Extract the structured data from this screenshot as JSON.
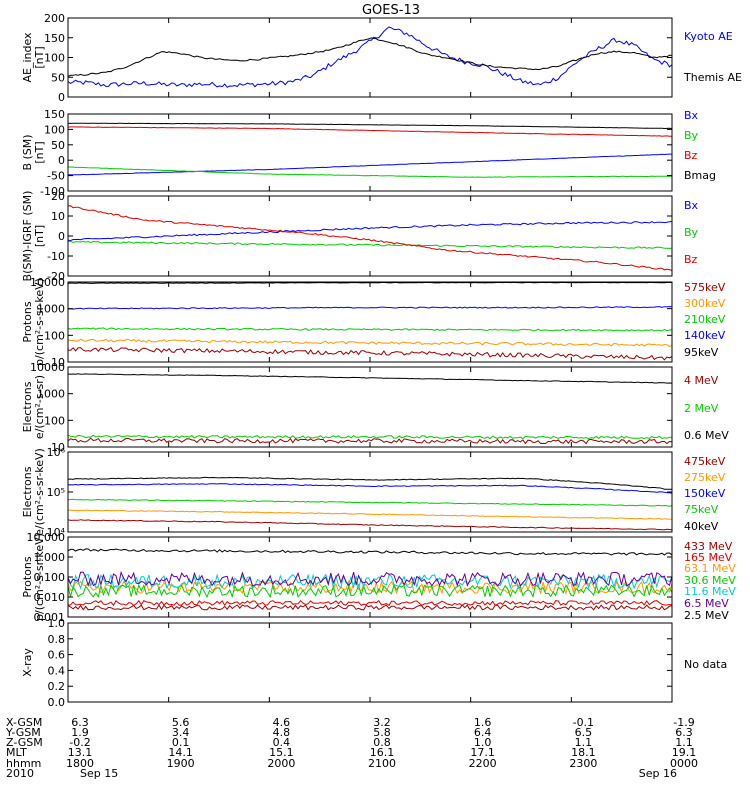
{
  "title": "GOES-13",
  "colors": {
    "black": "#000000",
    "blue": "#0000ff",
    "green": "#00cc00",
    "red": "#dd0000",
    "darkred": "#990000",
    "orange": "#ff9900",
    "cyan": "#00cccc",
    "purple": "#660099"
  },
  "chart_data": [
    {
      "type": "line",
      "panel": "ae",
      "ylabel": [
        "AE_index",
        "[nT]"
      ],
      "ylim": [
        0,
        200
      ],
      "yticks": [
        "0",
        "50",
        "100",
        "150",
        "200"
      ],
      "yscale": "linear",
      "series": [
        {
          "name": "Kyoto AE",
          "color": "blue",
          "noise": 6,
          "values": [
            37,
            36,
            30,
            33,
            35,
            32,
            30,
            33,
            31,
            30,
            32,
            34,
            40,
            55,
            85,
            110,
            140,
            175,
            160,
            130,
            105,
            90,
            80,
            60,
            40,
            30,
            50,
            90,
            120,
            145,
            130,
            95,
            80
          ]
        },
        {
          "name": "Themis AE",
          "color": "black",
          "noise": 2,
          "values": [
            53,
            57,
            62,
            75,
            95,
            115,
            110,
            100,
            95,
            92,
            95,
            100,
            105,
            112,
            120,
            135,
            150,
            140,
            125,
            108,
            100,
            90,
            80,
            75,
            72,
            70,
            78,
            95,
            110,
            115,
            112,
            100,
            105
          ]
        }
      ]
    },
    {
      "type": "line",
      "panel": "bsm",
      "ylabel": [
        "B (SM)",
        "[nT]"
      ],
      "ylim": [
        -100,
        150
      ],
      "yticks": [
        "-100",
        "-50",
        "0",
        "50",
        "100",
        "150"
      ],
      "yscale": "linear",
      "series": [
        {
          "name": "Bx",
          "color": "blue",
          "noise": 0.6,
          "values": [
            -48,
            -30,
            -5,
            20
          ]
        },
        {
          "name": "By",
          "color": "green",
          "noise": 0.6,
          "values": [
            -22,
            -45,
            -55,
            -52
          ]
        },
        {
          "name": "Bz",
          "color": "red",
          "noise": 0.6,
          "values": [
            108,
            103,
            90,
            78
          ]
        },
        {
          "name": "Bmag",
          "color": "black",
          "noise": 0.4,
          "values": [
            120,
            118,
            112,
            103
          ]
        }
      ]
    },
    {
      "type": "line",
      "panel": "bigrf",
      "ylabel": [
        "B(SM)-IGRF (SM)",
        "[nT]"
      ],
      "ylim": [
        -20,
        20
      ],
      "yticks": [
        "-20",
        "-10",
        "0",
        "10",
        "20"
      ],
      "yscale": "linear",
      "series": [
        {
          "name": "Bx",
          "color": "blue",
          "noise": 0.4,
          "values": [
            -2,
            0,
            2,
            4,
            5.5,
            6.5,
            7
          ]
        },
        {
          "name": "By",
          "color": "green",
          "noise": 0.4,
          "values": [
            -3,
            -3.5,
            -4,
            -4.5,
            -5,
            -5.5,
            -6
          ]
        },
        {
          "name": "Bz",
          "color": "red",
          "noise": 0.4,
          "values": [
            15,
            8,
            5,
            2,
            -2,
            -7,
            -10,
            -13,
            -17
          ]
        }
      ]
    },
    {
      "type": "line",
      "panel": "protons_low",
      "ylabel": [
        "Protons",
        "p/(cm²-s-sr-keV)"
      ],
      "ylim": [
        10,
        10000
      ],
      "yticks": [
        "10",
        "100",
        "1000",
        "10000"
      ],
      "yscale": "log",
      "series": [
        {
          "name": "575keV",
          "color": "darkred",
          "noise": 0.08,
          "values": [
            30,
            26,
            22,
            18,
            14
          ]
        },
        {
          "name": "300keV",
          "color": "orange",
          "noise": 0.05,
          "values": [
            65,
            58,
            52,
            48,
            42
          ]
        },
        {
          "name": "210keV",
          "color": "green",
          "noise": 0.03,
          "values": [
            180,
            170,
            165,
            160,
            155
          ]
        },
        {
          "name": "140keV",
          "color": "blue",
          "noise": 0.02,
          "values": [
            1000,
            1050,
            1100,
            1100,
            1150
          ]
        },
        {
          "name": "95keV",
          "color": "black",
          "noise": 0.01,
          "values": [
            9000,
            9200,
            9400,
            9500,
            9600
          ]
        }
      ]
    },
    {
      "type": "line",
      "panel": "electrons_mev",
      "ylabel": [
        "Electrons",
        "e/(cm²-s-sr)"
      ],
      "ylim": [
        10,
        10000
      ],
      "yticks": [
        "10",
        "100",
        "1000",
        "10000"
      ],
      "yscale": "log",
      "series": [
        {
          "name": "4 MeV",
          "color": "darkred",
          "noise": 0.08,
          "values": [
            18,
            17,
            17,
            16,
            16
          ]
        },
        {
          "name": "2 MeV",
          "color": "green",
          "noise": 0.05,
          "values": [
            25,
            24,
            24,
            23,
            23
          ]
        },
        {
          "name": "0.6 MeV",
          "color": "black",
          "noise": 0.01,
          "values": [
            5500,
            4800,
            3900,
            3100,
            2500
          ]
        }
      ]
    },
    {
      "type": "line",
      "panel": "electrons_kev",
      "ylabel": [
        "Electrons",
        "e/(cm²-s-sr-keV)"
      ],
      "ylim": [
        10000,
        1000000
      ],
      "yticks": [
        "10⁴",
        "10⁵",
        "10⁶"
      ],
      "yscale": "log",
      "series": [
        {
          "name": "475keV",
          "color": "darkred",
          "noise": 0.01,
          "values": [
            20000,
            18000,
            15000,
            13000,
            11500
          ]
        },
        {
          "name": "275keV",
          "color": "orange",
          "noise": 0.01,
          "values": [
            35000,
            32000,
            28000,
            24000,
            21000
          ]
        },
        {
          "name": "150keV",
          "color": "blue",
          "noise": 0.01,
          "values": [
            150000,
            160000,
            140000,
            145000,
            95000
          ]
        },
        {
          "name": "75keV",
          "color": "green",
          "noise": 0.01,
          "values": [
            65000,
            60000,
            55000,
            50000,
            45000
          ]
        },
        {
          "name": "40keV",
          "color": "black",
          "noise": 0.01,
          "values": [
            210000,
            230000,
            200000,
            220000,
            115000
          ]
        }
      ]
    },
    {
      "type": "line",
      "panel": "protons_mev",
      "ylabel": [
        "Protons",
        "p/(cm²-s-sr-keV)"
      ],
      "ylim": [
        0.001,
        10
      ],
      "yticks": [
        "0.001",
        "0.010",
        "0.100",
        "1.000",
        "10.000"
      ],
      "yscale": "log",
      "series": [
        {
          "name": "433 MeV",
          "color": "darkred",
          "noise": 0.12,
          "values": [
            0.003,
            0.003,
            0.003
          ]
        },
        {
          "name": "165 MeV",
          "color": "red",
          "noise": 0.12,
          "values": [
            0.005,
            0.005,
            0.005
          ]
        },
        {
          "name": "63.1 MeV",
          "color": "orange",
          "noise": 0.3,
          "values": [
            0.03,
            0.03,
            0.03
          ]
        },
        {
          "name": "30.6 MeV",
          "color": "green",
          "noise": 0.3,
          "values": [
            0.02,
            0.02,
            0.02
          ]
        },
        {
          "name": "11.6 MeV",
          "color": "cyan",
          "noise": 0.35,
          "values": [
            0.06,
            0.06,
            0.06
          ]
        },
        {
          "name": "6.5 MeV",
          "color": "purple",
          "noise": 0.35,
          "values": [
            0.08,
            0.08,
            0.08
          ]
        },
        {
          "name": "2.5 MeV",
          "color": "black",
          "noise": 0.06,
          "values": [
            2.3,
            2.0,
            1.8,
            1.5,
            1.4
          ]
        }
      ]
    },
    {
      "type": "line",
      "panel": "xray",
      "ylabel": [
        "X-ray",
        ""
      ],
      "ylim": [
        0,
        1.0
      ],
      "yticks": [
        "0.0",
        "0.2",
        "0.4",
        "0.6",
        "0.8",
        "1.0"
      ],
      "yscale": "linear",
      "series": [],
      "note": "No data"
    }
  ],
  "ephemeris": {
    "rows": [
      {
        "label": "X-GSM",
        "values": [
          "6.3",
          "5.6",
          "4.6",
          "3.2",
          "1.6",
          "-0.1",
          "-1.9"
        ]
      },
      {
        "label": "Y-GSM",
        "values": [
          "1.9",
          "3.4",
          "4.8",
          "5.8",
          "6.4",
          "6.5",
          "6.3"
        ]
      },
      {
        "label": "Z-GSM",
        "values": [
          "-0.2",
          "0.1",
          "0.4",
          "0.8",
          "1.0",
          "1.1",
          "1.1"
        ]
      },
      {
        "label": "MLT",
        "values": [
          "13.1",
          "14.1",
          "15.1",
          "16.1",
          "17.1",
          "18.1",
          "19.1"
        ]
      },
      {
        "label": "hhmm",
        "values": [
          "1800",
          "1900",
          "2000",
          "2100",
          "2200",
          "2300",
          "0000"
        ]
      },
      {
        "label": "2010",
        "values": [
          "Sep 15",
          "",
          "",
          "",
          "",
          "",
          "Sep 16"
        ]
      }
    ]
  }
}
